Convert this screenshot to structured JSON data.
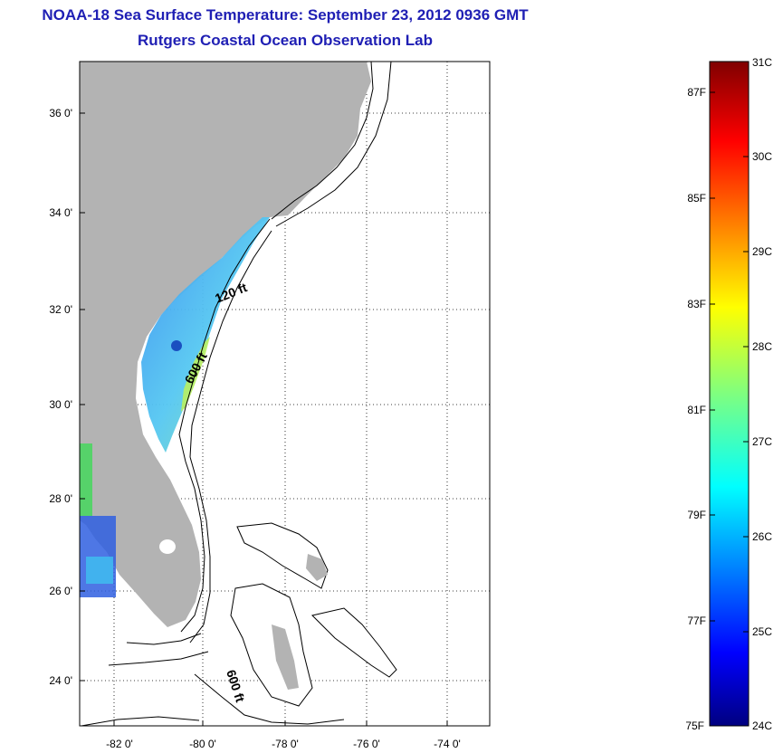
{
  "title": "NOAA-18 Sea Surface Temperature:  September 23, 2012 0936 GMT",
  "subtitle": "Rutgers Coastal Ocean Observation Lab",
  "map": {
    "lon_ticks": [
      "-82 0'",
      "-80 0'",
      "-78 0'",
      "-76 0'",
      "-74 0'"
    ],
    "lat_ticks": [
      "36 0'",
      "34 0'",
      "32 0'",
      "30 0'",
      "28 0'",
      "26 0'",
      "24 0'"
    ],
    "contour_labels": [
      "120 ft",
      "600 ft",
      "600 ft"
    ],
    "colors": {
      "land": "#b3b3b3",
      "contour": "#000000"
    }
  },
  "colorbar": {
    "celsius_labels": [
      "31C",
      "30C",
      "29C",
      "28C",
      "27C",
      "26C",
      "25C",
      "24C"
    ],
    "fahrenheit_labels": [
      "87F",
      "85F",
      "83F",
      "81F",
      "79F",
      "77F",
      "75F"
    ],
    "range_c": [
      24,
      31
    ],
    "colormap": "jet"
  }
}
